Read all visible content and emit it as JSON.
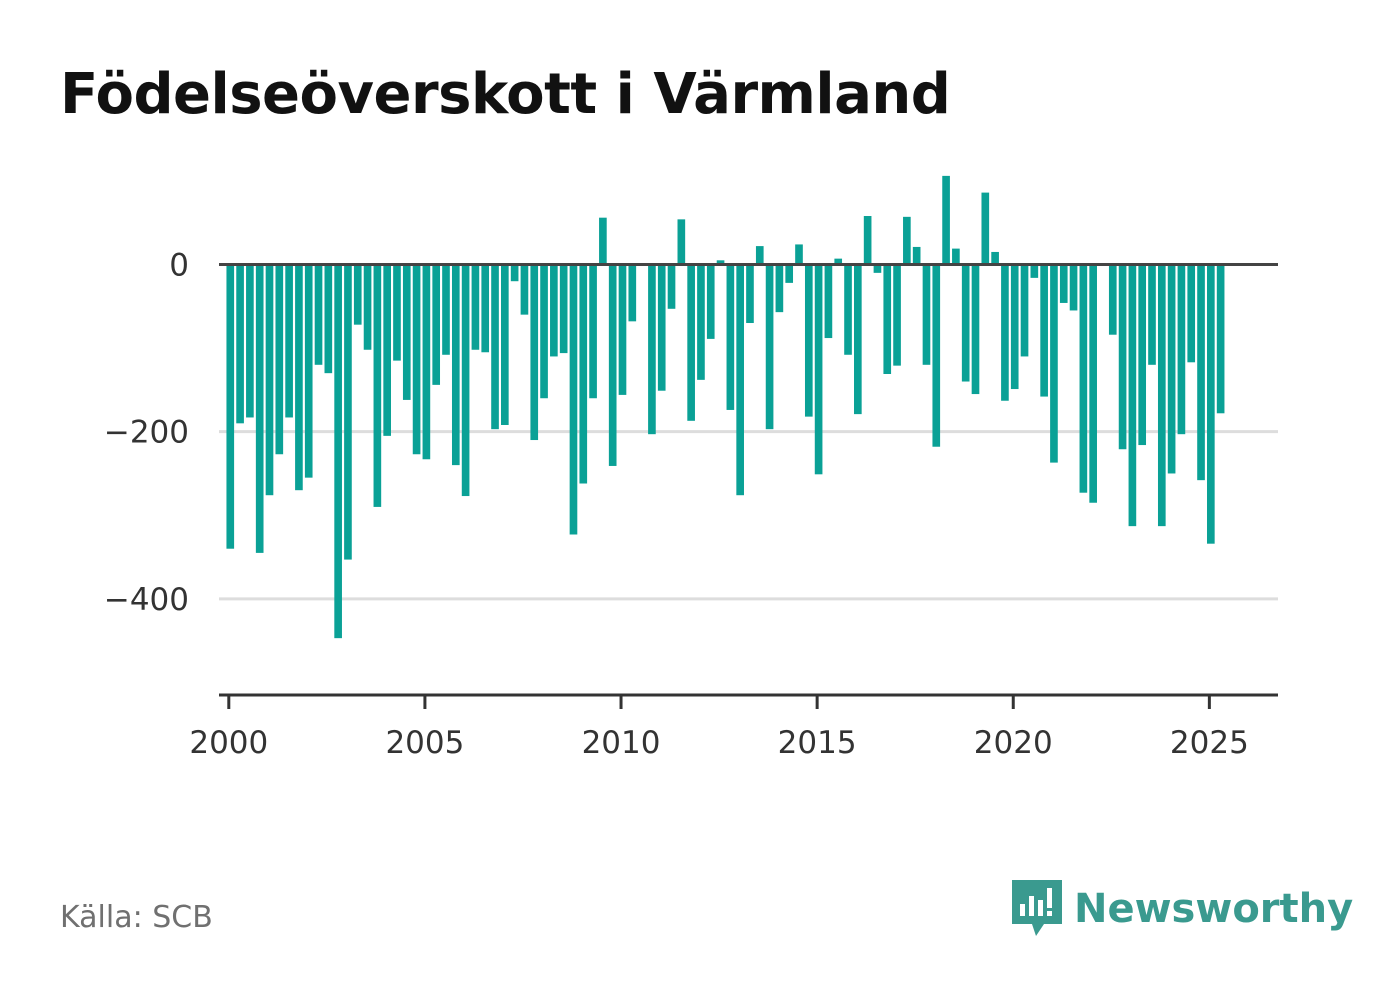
{
  "title": "Födelseöverskott i Värmland",
  "source": "Källa: SCB",
  "brand": {
    "name": "Newsworthy",
    "icon": "newsworthy-logo-icon",
    "color": "#3a9a8f"
  },
  "chart_data": {
    "type": "bar",
    "title": "Födelseöverskott i Värmland",
    "xlabel": "",
    "ylabel": "",
    "bar_color": "#0aa196",
    "grid": true,
    "xlim": [
      1999.75,
      2026.75
    ],
    "ylim": [
      -515,
      125
    ],
    "x_ticks": [
      2000,
      2005,
      2010,
      2015,
      2020,
      2025
    ],
    "y_ticks": [
      0,
      -200,
      -400
    ],
    "y_tick_labels": [
      "0",
      "−200",
      "−400"
    ],
    "x": [
      2000.0,
      2000.25,
      2000.5,
      2000.75,
      2001.0,
      2001.25,
      2001.5,
      2001.75,
      2002.0,
      2002.25,
      2002.5,
      2002.75,
      2003.0,
      2003.25,
      2003.5,
      2003.75,
      2004.0,
      2004.25,
      2004.5,
      2004.75,
      2005.0,
      2005.25,
      2005.5,
      2005.75,
      2006.0,
      2006.25,
      2006.5,
      2006.75,
      2007.0,
      2007.25,
      2007.5,
      2007.75,
      2008.0,
      2008.25,
      2008.5,
      2008.75,
      2009.0,
      2009.25,
      2009.5,
      2009.75,
      2010.0,
      2010.25,
      2010.5,
      2010.75,
      2011.0,
      2011.25,
      2011.5,
      2011.75,
      2012.0,
      2012.25,
      2012.5,
      2012.75,
      2013.0,
      2013.25,
      2013.5,
      2013.75,
      2014.0,
      2014.25,
      2014.5,
      2014.75,
      2015.0,
      2015.25,
      2015.5,
      2015.75,
      2016.0,
      2016.25,
      2016.5,
      2016.75,
      2017.0,
      2017.25,
      2017.5,
      2017.75,
      2018.0,
      2018.25,
      2018.5,
      2018.75,
      2019.0,
      2019.25,
      2019.5,
      2019.75,
      2020.0,
      2020.25,
      2020.5,
      2020.75,
      2021.0,
      2021.25,
      2021.5,
      2021.75,
      2022.0,
      2022.25,
      2022.5,
      2022.75,
      2023.0,
      2023.25,
      2023.5,
      2023.75,
      2024.0,
      2024.25,
      2024.5,
      2024.75,
      2025.0,
      2025.25
    ],
    "values": [
      -340,
      -190,
      -183,
      -345,
      -276,
      -227,
      -183,
      -270,
      -255,
      -120,
      -130,
      -447,
      -353,
      -72,
      -102,
      -290,
      -205,
      -115,
      -162,
      -227,
      -233,
      -144,
      -108,
      -240,
      -277,
      -102,
      -105,
      -197,
      -192,
      -20,
      -60,
      -210,
      -160,
      -110,
      -106,
      -323,
      -262,
      -160,
      56,
      -241,
      -156,
      -68,
      0,
      -203,
      -151,
      -53,
      54,
      -187,
      -138,
      -89,
      5,
      -174,
      -276,
      -70,
      22,
      -197,
      -57,
      -22,
      24,
      -182,
      -251,
      -88,
      7,
      -108,
      -179,
      58,
      -10,
      -131,
      -121,
      57,
      21,
      -120,
      -218,
      106,
      19,
      -140,
      -155,
      86,
      15,
      -163,
      -149,
      -110,
      -16,
      -158,
      -237,
      -46,
      -55,
      -273,
      -285,
      0,
      -84,
      -221,
      -313,
      -216,
      -120,
      -313,
      -250,
      -203,
      -117,
      -258,
      -334,
      -178
    ]
  }
}
